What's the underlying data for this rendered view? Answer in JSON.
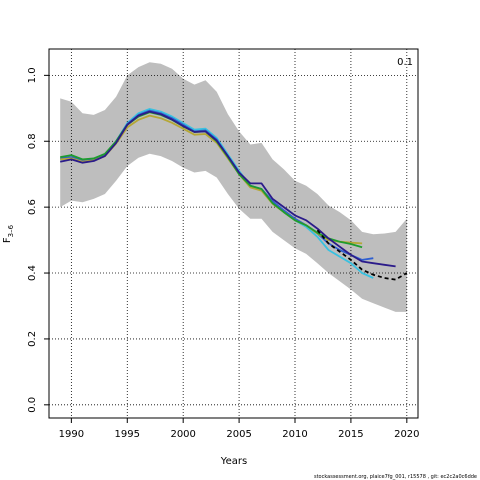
{
  "chart_data": {
    "type": "line",
    "title": "",
    "xlabel": "Years",
    "ylabel": "F3-6",
    "ylabel_main": "F",
    "ylabel_sub": "3–6",
    "xlim": [
      1988,
      2021
    ],
    "ylim": [
      -0.04,
      1.08
    ],
    "x_ticks": [
      "1990",
      "1995",
      "2000",
      "2005",
      "2010",
      "2015",
      "2020"
    ],
    "y_ticks": [
      "0.0",
      "0.2",
      "0.4",
      "0.6",
      "0.8",
      "1.0"
    ],
    "grid": true,
    "annotation": "0.1",
    "footer": "stockassessment.org, plaice7fg_001, r15578 , git: ec2c2a0c6dde",
    "colors": {
      "band": "#bebebe",
      "retro1": "#2f5fd0",
      "retro2": "#1e9c2e",
      "retro3": "#39c1e0",
      "retro4": "#b5a736",
      "retro5": "#2b1b8a",
      "final": "#000000"
    },
    "band": {
      "x": [
        1989,
        1990,
        1991,
        1992,
        1993,
        1994,
        1995,
        1996,
        1997,
        1998,
        1999,
        2000,
        2001,
        2002,
        2003,
        2004,
        2005,
        2006,
        2007,
        2008,
        2009,
        2010,
        2011,
        2012,
        2013,
        2014,
        2015,
        2016,
        2017,
        2018,
        2019,
        2020
      ],
      "lower": [
        0.6,
        0.62,
        0.615,
        0.625,
        0.64,
        0.68,
        0.725,
        0.75,
        0.762,
        0.755,
        0.74,
        0.72,
        0.705,
        0.71,
        0.69,
        0.64,
        0.595,
        0.565,
        0.565,
        0.525,
        0.5,
        0.475,
        0.458,
        0.43,
        0.4,
        0.375,
        0.35,
        0.322,
        0.308,
        0.295,
        0.282,
        0.282
      ],
      "upper": [
        0.93,
        0.92,
        0.885,
        0.88,
        0.895,
        0.935,
        1.0,
        1.025,
        1.04,
        1.035,
        1.02,
        0.99,
        0.972,
        0.985,
        0.95,
        0.882,
        0.83,
        0.79,
        0.795,
        0.745,
        0.715,
        0.68,
        0.665,
        0.64,
        0.605,
        0.585,
        0.56,
        0.525,
        0.518,
        0.52,
        0.525,
        0.565
      ]
    },
    "series": [
      {
        "color_key": "retro3",
        "dash": false,
        "x": [
          1989,
          1990,
          1991,
          1992,
          1993,
          1994,
          1995,
          1996,
          1997,
          1998,
          1999,
          2000,
          2001,
          2002,
          2003,
          2004,
          2005,
          2006,
          2007,
          2008,
          2009,
          2010,
          2011,
          2012,
          2013,
          2014,
          2015,
          2016,
          2017
        ],
        "values": [
          0.745,
          0.75,
          0.74,
          0.745,
          0.76,
          0.8,
          0.855,
          0.885,
          0.898,
          0.89,
          0.875,
          0.855,
          0.835,
          0.838,
          0.81,
          0.76,
          0.71,
          0.665,
          0.655,
          0.615,
          0.585,
          0.56,
          0.54,
          0.51,
          0.47,
          0.45,
          0.43,
          0.4,
          0.385
        ]
      },
      {
        "color_key": "retro1",
        "dash": false,
        "x": [
          1989,
          1990,
          1991,
          1992,
          1993,
          1994,
          1995,
          1996,
          1997,
          1998,
          1999,
          2000,
          2001,
          2002,
          2003,
          2004,
          2005,
          2006,
          2007,
          2008,
          2009,
          2010,
          2011,
          2012,
          2013,
          2014,
          2015,
          2016,
          2017
        ],
        "values": [
          0.748,
          0.752,
          0.742,
          0.746,
          0.76,
          0.8,
          0.852,
          0.88,
          0.893,
          0.885,
          0.87,
          0.85,
          0.83,
          0.833,
          0.805,
          0.755,
          0.705,
          0.665,
          0.655,
          0.618,
          0.59,
          0.565,
          0.545,
          0.52,
          0.49,
          0.47,
          0.455,
          0.44,
          0.445
        ]
      },
      {
        "color_key": "retro4",
        "dash": false,
        "x": [
          1989,
          1990,
          1991,
          1992,
          1993,
          1994,
          1995,
          1996,
          1997,
          1998,
          1999,
          2000,
          2001,
          2002,
          2003,
          2004,
          2005,
          2006,
          2007,
          2008,
          2009,
          2010,
          2011,
          2012,
          2013,
          2014,
          2015,
          2016
        ],
        "values": [
          0.745,
          0.748,
          0.738,
          0.742,
          0.755,
          0.793,
          0.842,
          0.865,
          0.878,
          0.87,
          0.856,
          0.838,
          0.82,
          0.822,
          0.795,
          0.748,
          0.7,
          0.66,
          0.65,
          0.61,
          0.585,
          0.56,
          0.545,
          0.52,
          0.5,
          0.495,
          0.492,
          0.49
        ]
      },
      {
        "color_key": "retro2",
        "dash": false,
        "x": [
          1989,
          1990,
          1991,
          1992,
          1993,
          1994,
          1995,
          1996,
          1997,
          1998,
          1999,
          2000,
          2001,
          2002,
          2003,
          2004,
          2005,
          2006,
          2007,
          2008,
          2009,
          2010,
          2011,
          2012,
          2013,
          2014,
          2015,
          2016
        ],
        "values": [
          0.752,
          0.758,
          0.745,
          0.748,
          0.762,
          0.8,
          0.85,
          0.875,
          0.888,
          0.88,
          0.865,
          0.845,
          0.828,
          0.83,
          0.8,
          0.752,
          0.7,
          0.665,
          0.655,
          0.612,
          0.585,
          0.56,
          0.545,
          0.522,
          0.505,
          0.495,
          0.488,
          0.478
        ]
      },
      {
        "color_key": "retro5",
        "dash": false,
        "x": [
          1989,
          1990,
          1991,
          1992,
          1993,
          1994,
          1995,
          1996,
          1997,
          1998,
          1999,
          2000,
          2001,
          2002,
          2003,
          2004,
          2005,
          2006,
          2007,
          2008,
          2009,
          2010,
          2011,
          2012,
          2013,
          2014,
          2015,
          2016,
          2017,
          2018,
          2019
        ],
        "values": [
          0.738,
          0.745,
          0.735,
          0.74,
          0.755,
          0.795,
          0.85,
          0.878,
          0.89,
          0.882,
          0.866,
          0.846,
          0.828,
          0.83,
          0.802,
          0.755,
          0.705,
          0.672,
          0.672,
          0.625,
          0.6,
          0.575,
          0.56,
          0.535,
          0.505,
          0.48,
          0.455,
          0.435,
          0.43,
          0.425,
          0.42
        ]
      },
      {
        "color_key": "final",
        "dash": true,
        "x": [
          2012,
          2013,
          2014,
          2015,
          2016,
          2017,
          2018,
          2019,
          2020
        ],
        "values": [
          0.53,
          0.49,
          0.465,
          0.44,
          0.41,
          0.395,
          0.385,
          0.38,
          0.4
        ]
      }
    ]
  }
}
